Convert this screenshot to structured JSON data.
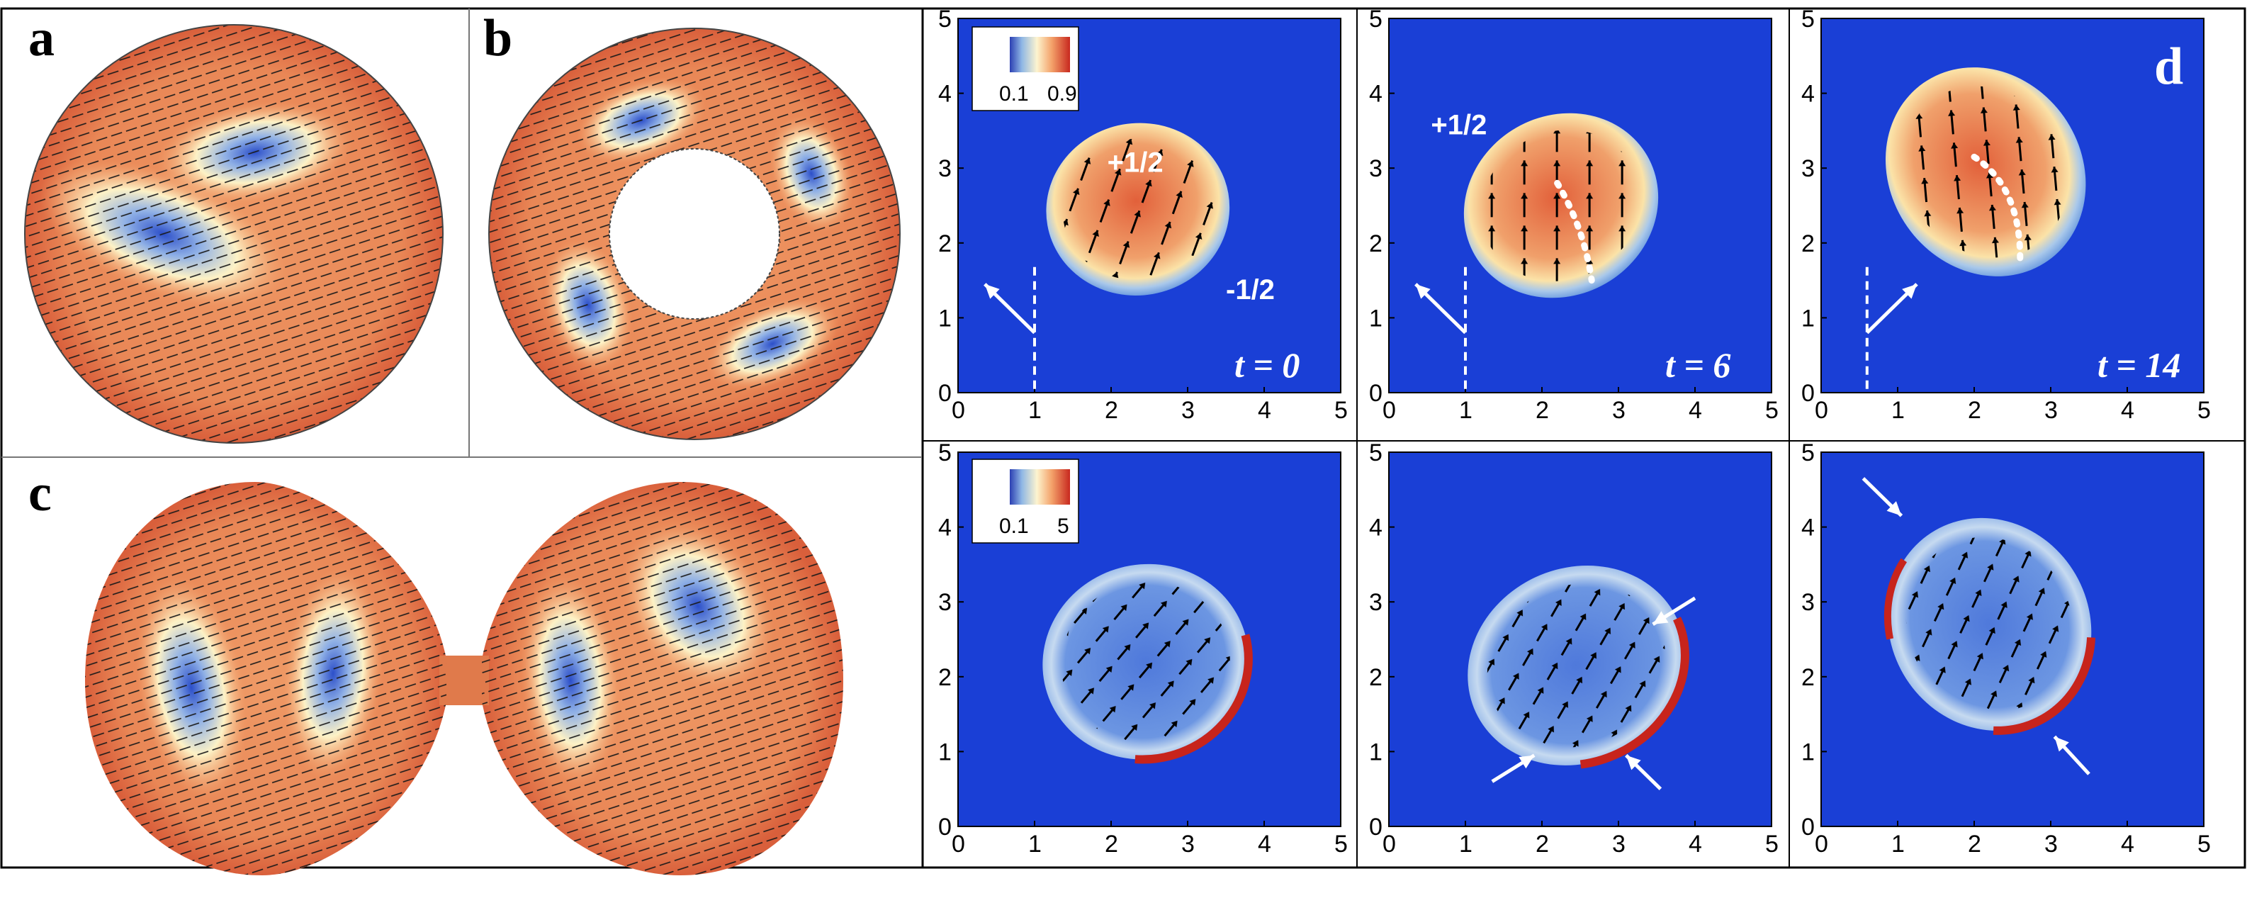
{
  "panels": {
    "a": {
      "letter": "a"
    },
    "b": {
      "letter": "b"
    },
    "c": {
      "letter": "c"
    },
    "d": {
      "letter": "d"
    }
  },
  "grid": {
    "axis_ticks": [
      "0",
      "1",
      "2",
      "3",
      "4",
      "5"
    ],
    "xlim": [
      0,
      5
    ],
    "ylim": [
      0,
      5
    ],
    "top_row": [
      {
        "time": "t = 0",
        "defects": [
          {
            "label": "+1/2",
            "x": 1.95,
            "y": 2.95
          },
          {
            "label": "-1/2",
            "x": 3.5,
            "y": 1.25
          }
        ],
        "dashed_line_x": 1.0
      },
      {
        "time": "t = 6",
        "defects": [
          {
            "label": "+1/2",
            "x": 0.55,
            "y": 3.45
          }
        ],
        "dashed_line_x": 1.0
      },
      {
        "time": "t = 14",
        "defects": [],
        "dashed_line_x": 0.6
      }
    ],
    "bottom_row": [
      {},
      {},
      {}
    ]
  },
  "colorbars": {
    "top": {
      "min_label": "0.1",
      "max_label": "0.9"
    },
    "bottom": {
      "min_label": "0.1",
      "max_label": "5"
    }
  },
  "colors": {
    "background_blue": "#1a3fd6",
    "frame": "#000000"
  }
}
